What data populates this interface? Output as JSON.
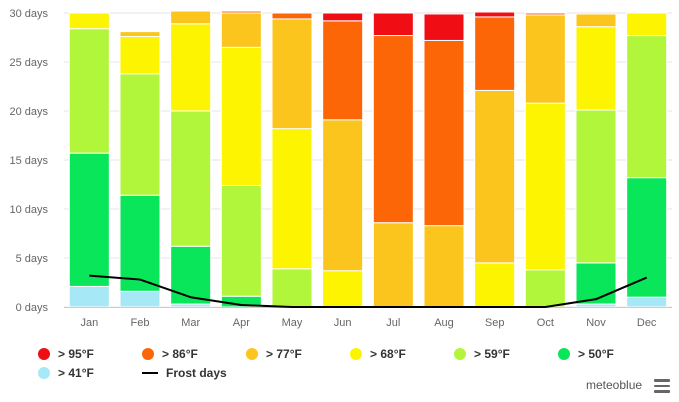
{
  "chart_data": {
    "type": "bar",
    "stacked": true,
    "categories": [
      "Jan",
      "Feb",
      "Mar",
      "Apr",
      "May",
      "Jun",
      "Jul",
      "Aug",
      "Sep",
      "Oct",
      "Nov",
      "Dec"
    ],
    "y_unit_suffix": " days",
    "ylim": [
      0,
      30
    ],
    "y_ticks": [
      0,
      5,
      10,
      15,
      20,
      25,
      30
    ],
    "grid": true,
    "legend_position": "bottom",
    "series": [
      {
        "name": "> 41°F",
        "color": "#a6e8f5",
        "values": [
          2.1,
          1.6,
          0.3,
          0.0,
          0.0,
          0.0,
          0.0,
          0.0,
          0.0,
          0.0,
          0.3,
          1.0
        ]
      },
      {
        "name": "> 50°F",
        "color": "#0ae65a",
        "values": [
          13.6,
          9.8,
          5.9,
          1.1,
          0.0,
          0.0,
          0.0,
          0.0,
          0.0,
          0.0,
          4.2,
          12.2
        ]
      },
      {
        "name": "> 59°F",
        "color": "#b2f63b",
        "values": [
          12.7,
          12.4,
          13.8,
          11.3,
          3.9,
          0.0,
          0.0,
          0.0,
          0.0,
          3.8,
          15.6,
          14.5
        ]
      },
      {
        "name": "> 68°F",
        "color": "#fdf402",
        "values": [
          1.6,
          3.8,
          8.9,
          14.1,
          14.3,
          3.7,
          0.0,
          0.0,
          4.5,
          17.0,
          8.5,
          2.3
        ]
      },
      {
        "name": "> 77°F",
        "color": "#fcc51e",
        "values": [
          0.0,
          0.5,
          1.3,
          3.5,
          11.2,
          15.4,
          8.6,
          8.3,
          17.6,
          9.0,
          1.3,
          0.0
        ]
      },
      {
        "name": "> 86°F",
        "color": "#fc6606",
        "values": [
          0.0,
          0.0,
          0.0,
          0.2,
          0.6,
          10.1,
          19.1,
          18.9,
          7.5,
          0.2,
          0.0,
          0.0
        ]
      },
      {
        "name": "> 95°F",
        "color": "#f00e14",
        "values": [
          0.0,
          0.0,
          0.0,
          0.0,
          0.0,
          0.8,
          2.3,
          2.7,
          0.5,
          0.0,
          0.0,
          0.0
        ]
      }
    ],
    "line_series": {
      "name": "Frost days",
      "color": "#000000",
      "values": [
        3.2,
        2.8,
        1.0,
        0.2,
        0.0,
        0.0,
        0.0,
        0.0,
        0.0,
        0.0,
        0.8,
        3.0
      ]
    }
  },
  "legend": {
    "row1": [
      "> 95°F",
      "> 86°F",
      "> 77°F",
      "> 68°F",
      "> 59°F",
      "> 50°F"
    ],
    "row2": [
      "> 41°F",
      "Frost days"
    ]
  },
  "brand": "meteoblue",
  "menu_icon": "hamburger-menu-icon"
}
